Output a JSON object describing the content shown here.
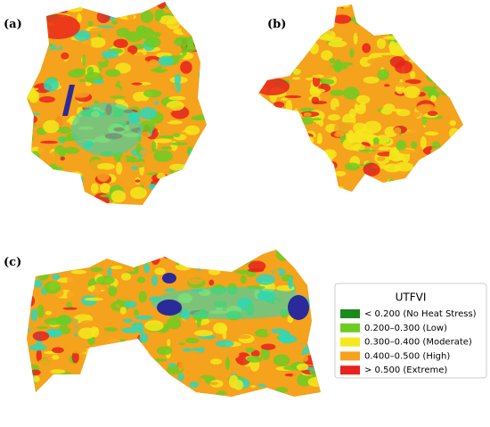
{
  "panels": [
    {
      "label": "(a)"
    },
    {
      "label": "(b)"
    },
    {
      "label": "(c)"
    }
  ],
  "legend": {
    "title": "UTFVI",
    "items": [
      {
        "label": "< 0.200 (No Heat Stress)",
        "color": "#1a8a1a"
      },
      {
        "label": "0.200–0.300 (Low)",
        "color": "#6ccc22"
      },
      {
        "label": "0.300–0.400 (Moderate)",
        "color": "#f5e81c"
      },
      {
        "label": "0.400–0.500 (High)",
        "color": "#f5a21c"
      },
      {
        "label": "> 0.500 (Extreme)",
        "color": "#e8221c"
      }
    ]
  }
}
